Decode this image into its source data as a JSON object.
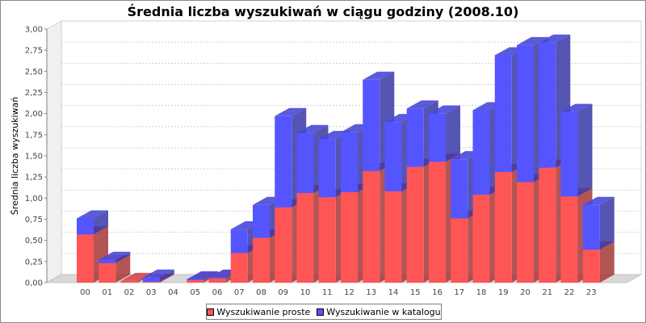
{
  "chart_data": {
    "type": "bar",
    "stacked": true,
    "three_d": true,
    "title": "Średnia liczba wyszukiwań w ciągu godziny (2008.10)",
    "ylabel": "Średnia liczba wyszukiwań",
    "xlabel": "",
    "ylim": [
      0,
      3
    ],
    "ytick_labels": [
      "0,00",
      "0,25",
      "0,50",
      "0,75",
      "1,00",
      "1,25",
      "1,50",
      "1,75",
      "2,00",
      "2,25",
      "2,50",
      "2,75",
      "3,00"
    ],
    "grid": true,
    "legend_position": "bottom",
    "categories": [
      "00",
      "01",
      "02",
      "03",
      "04",
      "05",
      "06",
      "07",
      "08",
      "09",
      "10",
      "11",
      "12",
      "13",
      "14",
      "15",
      "16",
      "17",
      "18",
      "19",
      "20",
      "21",
      "22",
      "23"
    ],
    "series": [
      {
        "name": "Wyszukiwanie proste",
        "color": "#ff5555",
        "values": [
          0.57,
          0.23,
          0.02,
          0.01,
          0,
          0.03,
          0.05,
          0.35,
          0.53,
          0.89,
          1.06,
          1.01,
          1.07,
          1.32,
          1.08,
          1.37,
          1.43,
          0.76,
          1.04,
          1.31,
          1.19,
          1.36,
          1.02,
          0.39
        ]
      },
      {
        "name": "Wyszukiwanie w katalogu",
        "color": "#5555ff",
        "values": [
          0.19,
          0.04,
          0,
          0.05,
          0,
          0.01,
          0.01,
          0.28,
          0.39,
          1.08,
          0.71,
          0.69,
          0.71,
          1.08,
          0.82,
          0.69,
          0.57,
          0.7,
          1.0,
          1.38,
          1.62,
          1.48,
          1.0,
          0.53
        ]
      }
    ]
  }
}
